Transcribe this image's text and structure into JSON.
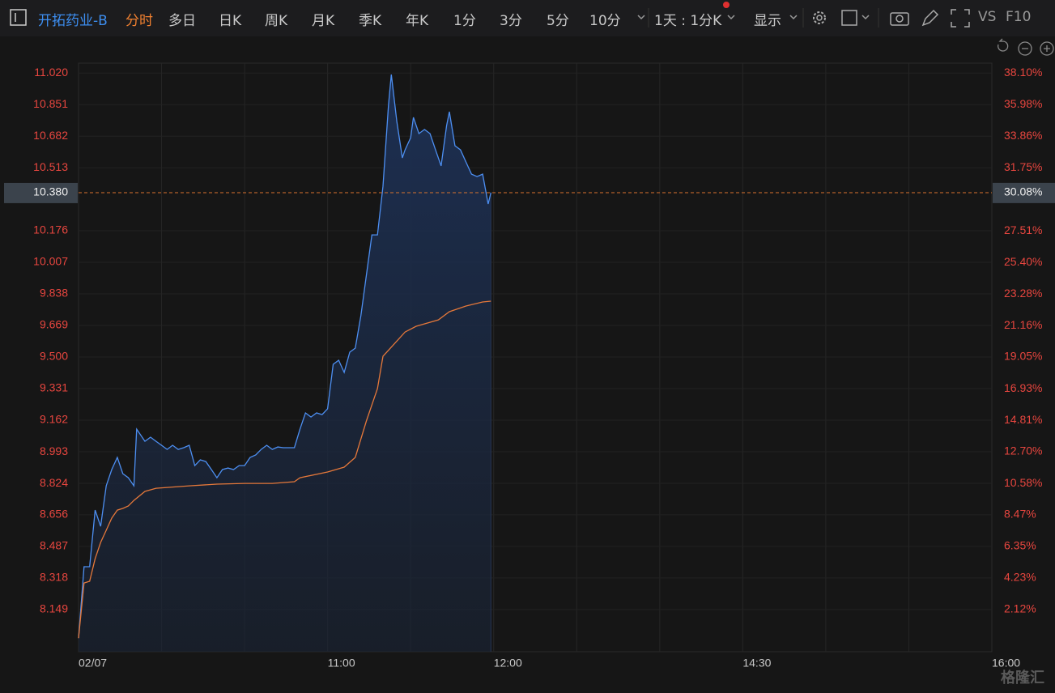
{
  "toolbar": {
    "stock_name": "开拓药业-B",
    "tabs": [
      "分时",
      "多日",
      "日K",
      "周K",
      "月K",
      "季K",
      "年K",
      "1分",
      "3分",
      "5分",
      "10分"
    ],
    "active_tab": 0,
    "period": "1天 : 1分K",
    "display": "显示",
    "vs": "VS",
    "f10": "F10"
  },
  "watermark": "格隆汇",
  "chart_data": {
    "type": "line",
    "xlim": [
      "09:30",
      "16:00"
    ],
    "session_break": [
      "12:00",
      "13:00"
    ],
    "xticks": [
      {
        "value": "09:30",
        "label": "02/07"
      },
      "11:00",
      "12:00",
      "14:30",
      "16:00"
    ],
    "xgrid": [
      "10:00",
      "10:30",
      "11:00",
      "11:30",
      "12:00",
      "13:30",
      "14:00",
      "14:30",
      "15:00",
      "15:30"
    ],
    "ylim": [
      7.923,
      11.073
    ],
    "yticks": [
      {
        "value": 11.02,
        "label": "11.020"
      },
      10.851,
      10.682,
      10.513,
      10.176,
      10.007,
      9.838,
      9.669,
      {
        "value": 9.5,
        "label": "9.500"
      },
      9.331,
      9.162,
      8.993,
      8.824,
      8.656,
      8.487,
      8.318,
      8.149
    ],
    "y2lim": [
      -0.71,
      38.76
    ],
    "y2ticks": [
      {
        "value": 38.1,
        "label": "38.10%"
      },
      {
        "value": 35.98,
        "label": "35.98%"
      },
      {
        "value": 33.86,
        "label": "33.86%"
      },
      {
        "value": 31.75,
        "label": "31.75%"
      },
      {
        "value": 27.51,
        "label": "27.51%"
      },
      {
        "value": 25.4,
        "label": "25.40%"
      },
      {
        "value": 23.28,
        "label": "23.28%"
      },
      {
        "value": 21.16,
        "label": "21.16%"
      },
      {
        "value": 19.05,
        "label": "19.05%"
      },
      {
        "value": 16.93,
        "label": "16.93%"
      },
      {
        "value": 14.81,
        "label": "14.81%"
      },
      {
        "value": 12.7,
        "label": "12.70%"
      },
      {
        "value": 10.58,
        "label": "10.58%"
      },
      {
        "value": 8.47,
        "label": "8.47%"
      },
      {
        "value": 6.35,
        "label": "6.35%"
      },
      {
        "value": 4.23,
        "label": "4.23%"
      },
      {
        "value": 2.12,
        "label": "2.12%"
      }
    ],
    "last_price": {
      "value": 10.38,
      "label": "10.380"
    },
    "last_change": {
      "value": 30.08,
      "label": "30.08%"
    },
    "grid": true,
    "series": [
      {
        "color": "#4d8ff2",
        "area": true,
        "x": [
          "09:30",
          "09:32",
          "09:34",
          "09:36",
          "09:38",
          "09:40",
          "09:42",
          "09:44",
          "09:46",
          "09:48",
          "09:50",
          "09:51",
          "09:54",
          "09:56",
          "09:58",
          "10:00",
          "10:02",
          "10:04",
          "10:06",
          "10:08",
          "10:10",
          "10:12",
          "10:14",
          "10:16",
          "10:18",
          "10:20",
          "10:22",
          "10:24",
          "10:26",
          "10:28",
          "10:30",
          "10:32",
          "10:34",
          "10:36",
          "10:38",
          "10:40",
          "10:42",
          "10:44",
          "10:46",
          "10:48",
          "10:50",
          "10:52",
          "10:54",
          "10:56",
          "10:58",
          "11:00",
          "11:02",
          "11:04",
          "11:06",
          "11:08",
          "11:10",
          "11:12",
          "11:14",
          "11:16",
          "11:18",
          "11:20",
          "11:22",
          "11:23",
          "11:25",
          "11:27",
          "11:28",
          "11:30",
          "11:31",
          "11:33",
          "11:35",
          "11:37",
          "11:39",
          "11:41",
          "11:43",
          "11:44",
          "11:46",
          "11:48",
          "11:50",
          "11:52",
          "11:54",
          "11:56",
          "11:58",
          "11:59"
        ],
        "values": [
          7.996,
          8.378,
          8.378,
          8.681,
          8.594,
          8.811,
          8.898,
          8.963,
          8.876,
          8.854,
          8.811,
          9.114,
          9.049,
          9.071,
          9.049,
          9.028,
          9.006,
          9.028,
          9.006,
          9.015,
          9.028,
          8.919,
          8.95,
          8.941,
          8.898,
          8.854,
          8.898,
          8.906,
          8.898,
          8.919,
          8.919,
          8.963,
          8.976,
          9.006,
          9.028,
          9.006,
          9.019,
          9.015,
          9.015,
          9.015,
          9.114,
          9.201,
          9.179,
          9.201,
          9.192,
          9.223,
          9.461,
          9.483,
          9.418,
          9.526,
          9.548,
          9.721,
          9.938,
          10.154,
          10.154,
          10.414,
          10.848,
          11.012,
          10.761,
          10.566,
          10.609,
          10.674,
          10.783,
          10.696,
          10.718,
          10.696,
          10.609,
          10.523,
          10.739,
          10.813,
          10.631,
          10.609,
          10.544,
          10.479,
          10.466,
          10.479,
          10.319,
          10.38
        ]
      },
      {
        "color": "#e5783a",
        "area": false,
        "x": [
          "09:30",
          "09:32",
          "09:34",
          "09:36",
          "09:38",
          "09:40",
          "09:42",
          "09:44",
          "09:46",
          "09:48",
          "09:50",
          "09:54",
          "09:58",
          "10:02",
          "10:10",
          "10:20",
          "10:30",
          "10:40",
          "10:48",
          "10:50",
          "11:00",
          "11:06",
          "11:10",
          "11:14",
          "11:18",
          "11:20",
          "11:24",
          "11:28",
          "11:32",
          "11:40",
          "11:44",
          "11:50",
          "11:56",
          "11:59"
        ],
        "values": [
          7.996,
          8.291,
          8.3,
          8.421,
          8.508,
          8.573,
          8.638,
          8.681,
          8.69,
          8.703,
          8.733,
          8.781,
          8.798,
          8.802,
          8.811,
          8.82,
          8.824,
          8.824,
          8.833,
          8.854,
          8.885,
          8.911,
          8.963,
          9.158,
          9.331,
          9.504,
          9.569,
          9.634,
          9.665,
          9.699,
          9.743,
          9.773,
          9.795,
          9.799
        ]
      }
    ]
  }
}
